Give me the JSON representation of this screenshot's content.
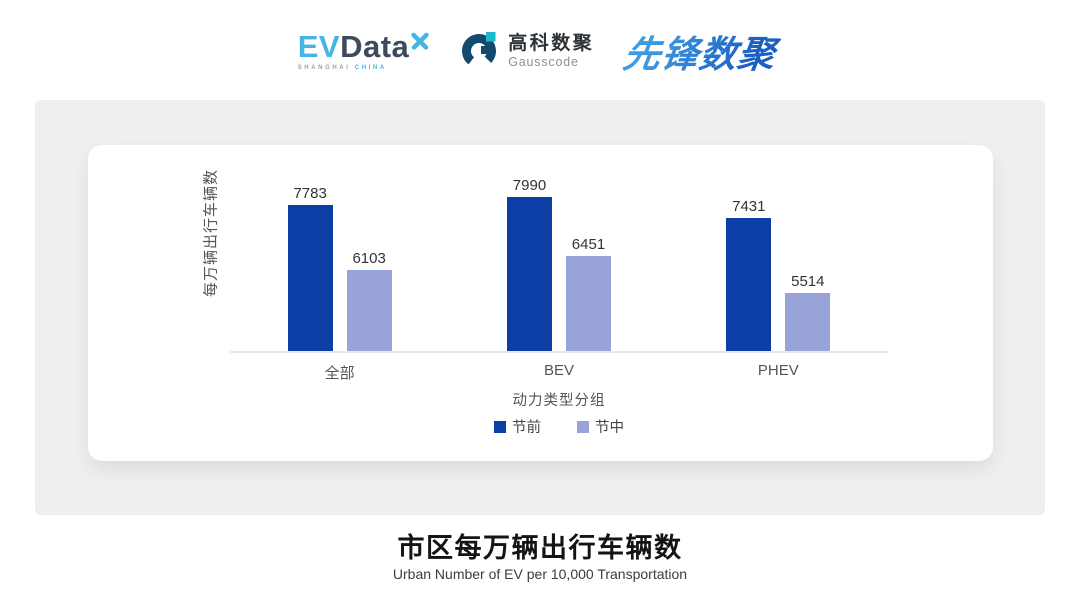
{
  "header": {
    "evdata": {
      "ev": "EV",
      "data": "Data",
      "sub_left": "SHANGHAI",
      "sub_right": "CHINA"
    },
    "gausscode": {
      "cn": "高科数聚",
      "en": "Gausscode"
    },
    "xianfeng": {
      "text": "先锋数聚"
    }
  },
  "brand_colors": {
    "evdata_blue": "#45B5E8",
    "evdata_dark": "#3D4A5C",
    "gauss_dark": "#14496E",
    "gauss_cyan": "#1FB9C9",
    "xianfeng_blue_1": "#3E9BE0",
    "xianfeng_blue_2": "#1C5FC2"
  },
  "chart_data": {
    "type": "bar",
    "title": "市区每万辆出行车辆数",
    "subtitle": "Urban Number of EV per 10,000 Transportation",
    "categories": [
      "全部",
      "BEV",
      "PHEV"
    ],
    "series": [
      {
        "name": "节前",
        "color": "#0D3EA5",
        "values": [
          7783,
          7990,
          7431
        ]
      },
      {
        "name": "节中",
        "color": "#98A3DA",
        "values": [
          6103,
          6451,
          5514
        ]
      }
    ],
    "xlabel": "动力类型分组",
    "ylabel": "每万辆出行车辆数",
    "ylim": [
      4000,
      8500
    ],
    "grid": false,
    "legend_position": "bottom",
    "axis_line_color": "#E8E8E8"
  }
}
